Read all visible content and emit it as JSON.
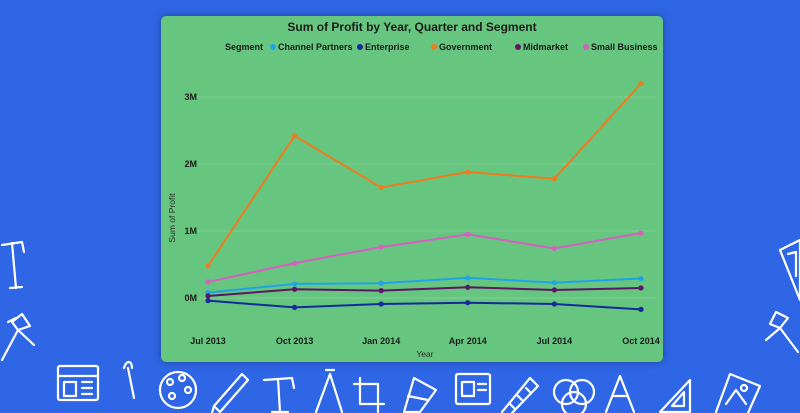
{
  "chart_data": {
    "type": "line",
    "title": "Sum of Profit by Year, Quarter and Segment",
    "xlabel": "Year",
    "ylabel": "Sum of Profit",
    "legend_title": "Segment",
    "legend_position": "top",
    "categories": [
      "Jul 2013",
      "Oct 2013",
      "Jan 2014",
      "Apr 2014",
      "Jul 2014",
      "Oct 2014"
    ],
    "yticks": [
      {
        "value": 0,
        "label": "0M"
      },
      {
        "value": 1000000,
        "label": "1M"
      },
      {
        "value": 2000000,
        "label": "2M"
      },
      {
        "value": 3000000,
        "label": "3M"
      }
    ],
    "ylim": [
      -300000,
      3500000
    ],
    "grid": true,
    "series": [
      {
        "name": "Channel Partners",
        "color": "#1fa3e8",
        "values": [
          80000,
          210000,
          220000,
          300000,
          230000,
          290000
        ]
      },
      {
        "name": "Enterprise",
        "color": "#16299a",
        "values": [
          -40000,
          -140000,
          -90000,
          -70000,
          -90000,
          -170000
        ]
      },
      {
        "name": "Government",
        "color": "#f07a1e",
        "values": [
          480000,
          2420000,
          1650000,
          1880000,
          1780000,
          3200000
        ]
      },
      {
        "name": "Midmarket",
        "color": "#5b1666",
        "values": [
          30000,
          130000,
          110000,
          160000,
          120000,
          150000
        ]
      },
      {
        "name": "Small Business",
        "color": "#d65fc0",
        "values": [
          240000,
          520000,
          760000,
          950000,
          740000,
          970000
        ]
      }
    ]
  }
}
